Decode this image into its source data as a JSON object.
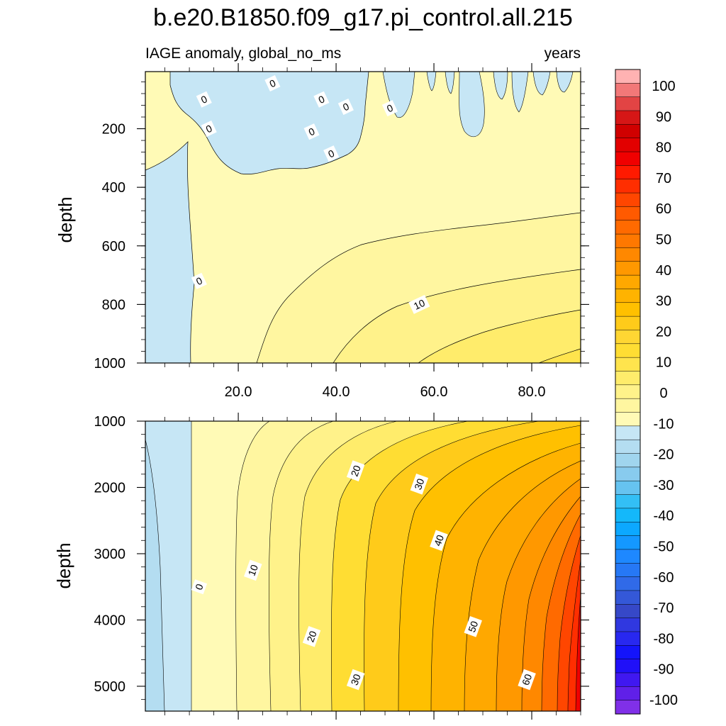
{
  "figure": {
    "title": "b.e20.B1850.f09_g17.pi_control.all.215",
    "left_subtitle": "IAGE anomaly, global_no_ms",
    "right_subtitle": "years"
  },
  "chart_data": [
    {
      "type": "heatmap",
      "panel": "upper",
      "ylabel": "depth",
      "xlabel": "",
      "xlim": [
        1,
        90
      ],
      "ylim": [
        1000,
        5
      ],
      "x_ticks": [
        20,
        40,
        60,
        80
      ],
      "x_tick_labels": [
        "20.0",
        "40.0",
        "60.0",
        "80.0"
      ],
      "y_ticks": [
        200,
        400,
        600,
        800,
        1000
      ],
      "y_tick_labels": [
        "200",
        "400",
        "600",
        "800",
        "1000"
      ],
      "contour_labels": [
        {
          "text": "0",
          "x": 12,
          "y": 720
        },
        {
          "text": "0",
          "x": 13,
          "y": 100
        },
        {
          "text": "0",
          "x": 14,
          "y": 200
        },
        {
          "text": "0",
          "x": 27,
          "y": 45
        },
        {
          "text": "0",
          "x": 35,
          "y": 210
        },
        {
          "text": "0",
          "x": 37,
          "y": 100
        },
        {
          "text": "0",
          "x": 39,
          "y": 285
        },
        {
          "text": "0",
          "x": 42,
          "y": 125
        },
        {
          "text": "0",
          "x": 51,
          "y": 130
        },
        {
          "text": "10",
          "x": 57,
          "y": 800
        }
      ]
    },
    {
      "type": "heatmap",
      "panel": "lower",
      "ylabel": "depth",
      "xlabel": "",
      "xlim": [
        1,
        90
      ],
      "ylim": [
        5375,
        1000
      ],
      "y_ticks": [
        1000,
        2000,
        3000,
        4000,
        5000
      ],
      "y_tick_labels": [
        "1000",
        "2000",
        "3000",
        "4000",
        "5000"
      ],
      "contour_labels": [
        {
          "text": "0",
          "x": 12,
          "y": 3500
        },
        {
          "text": "10",
          "x": 23,
          "y": 3250
        },
        {
          "text": "20",
          "x": 35,
          "y": 4250
        },
        {
          "text": "30",
          "x": 44,
          "y": 4900
        },
        {
          "text": "20",
          "x": 44,
          "y": 1750
        },
        {
          "text": "30",
          "x": 57,
          "y": 1950
        },
        {
          "text": "40",
          "x": 61,
          "y": 2800
        },
        {
          "text": "50",
          "x": 68,
          "y": 4100
        },
        {
          "text": "60",
          "x": 79,
          "y": 4900
        }
      ]
    }
  ],
  "colorbar": {
    "levels": [
      -100,
      -95,
      -90,
      -85,
      -80,
      -75,
      -70,
      -65,
      -60,
      -55,
      -50,
      -45,
      -40,
      -35,
      -30,
      -25,
      -20,
      -15,
      -10,
      -5,
      0,
      5,
      10,
      15,
      20,
      25,
      30,
      35,
      40,
      45,
      50,
      55,
      60,
      65,
      70,
      75,
      80,
      85,
      90,
      95,
      100
    ],
    "labels": [
      "100",
      "90",
      "80",
      "70",
      "60",
      "50",
      "40",
      "30",
      "20",
      "10",
      "0",
      "-10",
      "-20",
      "-30",
      "-40",
      "-50",
      "-60",
      "-70",
      "-80",
      "-90",
      "-100"
    ],
    "colors_top_to_bottom": [
      "#ffb2b2",
      "#f27878",
      "#e24444",
      "#d61616",
      "#d00000",
      "#e20000",
      "#f00000",
      "#ff1a00",
      "#ff2e00",
      "#ff4600",
      "#ff5a00",
      "#ff6a00",
      "#ff7800",
      "#ff8800",
      "#ff9800",
      "#ffa800",
      "#ffb300",
      "#ffc000",
      "#ffcb1a",
      "#ffd633",
      "#ffdd33",
      "#ffe44d",
      "#ffec6b",
      "#fff28a",
      "#fff6a0",
      "#fffab6",
      "#c6e6f5",
      "#b4ddf1",
      "#a0d5ee",
      "#88cbee",
      "#66c3f0",
      "#33bff5",
      "#14b8fa",
      "#0ca8ff",
      "#1498ff",
      "#1e88ff",
      "#2678f5",
      "#306ae8",
      "#3458d8",
      "#3648c8",
      "#3038e0",
      "#2828f0",
      "#1414fa",
      "#2010f8",
      "#4018f0",
      "#6020e8",
      "#8030e8"
    ]
  }
}
